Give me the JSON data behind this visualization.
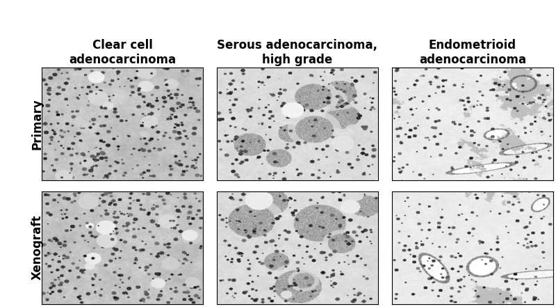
{
  "col_titles": [
    "Clear cell\nadenocarcinoma",
    "Serous adenocarcinoma,\nhigh grade",
    "Endometrioid\nadenocarcinoma"
  ],
  "row_labels": [
    "Primary",
    "Xenograft"
  ],
  "n_rows": 2,
  "n_cols": 3,
  "background_color": "#ffffff",
  "title_fontsize": 12,
  "row_label_fontsize": 12,
  "row_label_fontweight": "bold",
  "col_title_fontweight": "bold",
  "fig_width": 8.0,
  "fig_height": 4.41
}
